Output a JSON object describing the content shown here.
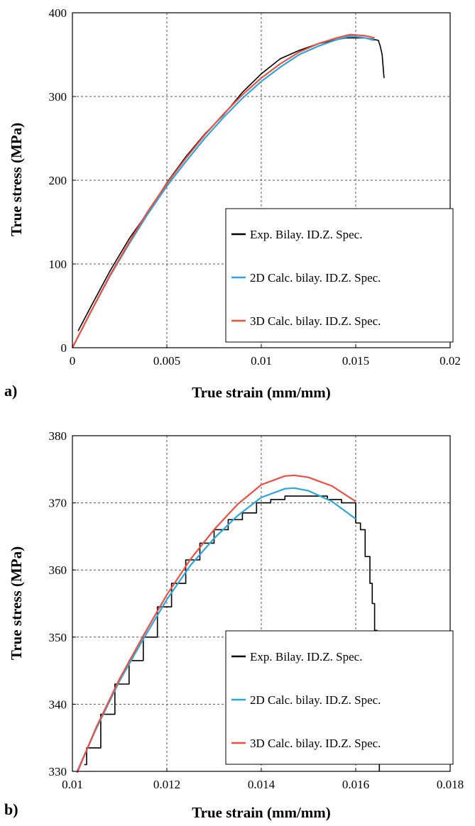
{
  "chart_data": [
    {
      "type": "line",
      "panel_label": "a)",
      "xlabel": "True strain (mm/mm)",
      "ylabel": "True stress (MPa)",
      "xlim": [
        0,
        0.02
      ],
      "ylim": [
        0,
        400
      ],
      "xticks": [
        0,
        0.005,
        0.01,
        0.015,
        0.02
      ],
      "xtick_labels": [
        "0",
        "0.005",
        "0.01",
        "0.015",
        "0.02"
      ],
      "yticks": [
        0,
        100,
        200,
        300,
        400
      ],
      "ytick_labels": [
        "0",
        "100",
        "200",
        "300",
        "400"
      ],
      "grid": true,
      "legend_position": "lower-right",
      "series": [
        {
          "name": "Exp. Bilay. ID.Z. Spec.",
          "color": "#000000",
          "x": [
            0.0003,
            0.001,
            0.002,
            0.003,
            0.004,
            0.005,
            0.006,
            0.007,
            0.008,
            0.009,
            0.01,
            0.011,
            0.012,
            0.013,
            0.014,
            0.0145,
            0.015,
            0.0155,
            0.016,
            0.0162,
            0.0163,
            0.0164,
            0.0165
          ],
          "y": [
            20,
            50,
            92,
            130,
            162,
            197,
            228,
            255,
            278,
            305,
            327,
            345,
            355,
            363,
            368,
            370,
            370,
            370,
            368,
            367,
            360,
            350,
            322
          ]
        },
        {
          "name": "2D Calc. bilay. ID.Z. Spec.",
          "color": "#29a8e0",
          "x": [
            0,
            0.001,
            0.002,
            0.003,
            0.004,
            0.005,
            0.006,
            0.007,
            0.008,
            0.009,
            0.01,
            0.011,
            0.012,
            0.013,
            0.014,
            0.0147,
            0.015,
            0.0155,
            0.016
          ],
          "y": [
            0,
            44,
            86,
            124,
            160,
            193,
            222,
            250,
            275,
            298,
            318,
            335,
            350,
            360,
            368,
            372,
            371.5,
            370,
            367
          ]
        },
        {
          "name": "3D Calc. bilay. ID.Z. Spec.",
          "color": "#f04e3e",
          "x": [
            0,
            0.001,
            0.002,
            0.003,
            0.004,
            0.005,
            0.006,
            0.007,
            0.008,
            0.009,
            0.01,
            0.011,
            0.012,
            0.013,
            0.014,
            0.0147,
            0.015,
            0.0155,
            0.016
          ],
          "y": [
            0,
            44,
            87,
            126,
            163,
            196,
            226,
            254,
            279,
            302,
            322,
            339,
            353,
            363,
            370,
            374,
            373.5,
            372.5,
            370
          ]
        }
      ]
    },
    {
      "type": "line",
      "panel_label": "b)",
      "xlabel": "True strain (mm/mm)",
      "ylabel": "True stress (MPa)",
      "xlim": [
        0.01,
        0.018
      ],
      "ylim": [
        330,
        380
      ],
      "xticks": [
        0.01,
        0.012,
        0.014,
        0.016,
        0.018
      ],
      "xtick_labels": [
        "0.01",
        "0.012",
        "0.014",
        "0.016",
        "0.018"
      ],
      "yticks": [
        330,
        340,
        350,
        360,
        370,
        380
      ],
      "ytick_labels": [
        "330",
        "340",
        "350",
        "360",
        "370",
        "380"
      ],
      "grid": true,
      "legend_position": "lower-right",
      "series": [
        {
          "name": "Exp. Bilay. ID.Z. Spec.",
          "color": "#000000",
          "x": [
            0.01025,
            0.0103,
            0.0106,
            0.0109,
            0.0112,
            0.0115,
            0.0118,
            0.0121,
            0.0124,
            0.0127,
            0.013,
            0.0133,
            0.0136,
            0.0139,
            0.0142,
            0.0145,
            0.0148,
            0.0151,
            0.0154,
            0.0157,
            0.016,
            0.0161,
            0.0162,
            0.0163,
            0.01635,
            0.0164,
            0.01645,
            0.0165,
            0.0165
          ],
          "y": [
            331,
            333.5,
            338.5,
            343,
            346.5,
            350,
            354.5,
            358,
            361.5,
            364,
            366,
            367.5,
            368.5,
            370,
            370.5,
            371,
            371,
            371,
            370.5,
            370,
            367,
            366,
            362,
            358,
            355,
            351,
            345,
            337,
            330
          ]
        },
        {
          "name": "2D Calc. bilay. ID.Z. Spec.",
          "color": "#29a8e0",
          "x": [
            0.0101,
            0.0105,
            0.011,
            0.0115,
            0.012,
            0.0125,
            0.013,
            0.0135,
            0.014,
            0.0145,
            0.0147,
            0.015,
            0.0155,
            0.016
          ],
          "y": [
            330,
            336.3,
            343.5,
            349.7,
            355.6,
            360.7,
            364.7,
            368.1,
            370.8,
            372.1,
            372.2,
            371.8,
            370.2,
            367.6
          ]
        },
        {
          "name": "3D Calc. bilay. ID.Z. Spec.",
          "color": "#f04e3e",
          "x": [
            0.0101,
            0.0105,
            0.011,
            0.0115,
            0.012,
            0.0125,
            0.013,
            0.0135,
            0.014,
            0.0145,
            0.0147,
            0.015,
            0.0155,
            0.016
          ],
          "y": [
            329.8,
            336.5,
            343.8,
            350.2,
            356.3,
            361.6,
            366.0,
            369.8,
            372.7,
            374.0,
            374.1,
            373.8,
            372.5,
            370.2
          ]
        }
      ]
    }
  ]
}
